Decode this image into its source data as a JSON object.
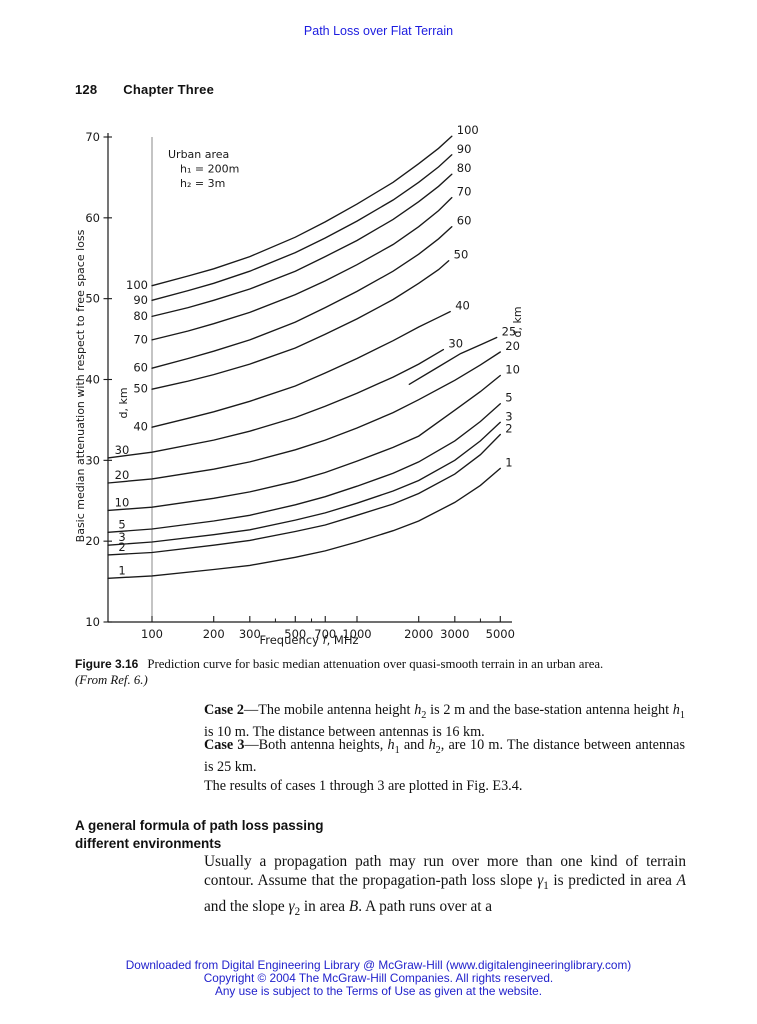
{
  "page": {
    "running_title": "Path Loss over Flat Terrain",
    "running_title_color": "#1c1ce0",
    "page_number": "128",
    "chapter": "Chapter Three"
  },
  "figure": {
    "caption_label": "Figure 3.16",
    "caption_text": "Prediction curve for basic median attenuation over quasi-smooth terrain in an urban area. ",
    "caption_source": "(From Ref. 6.)",
    "annotation": [
      "Urban area",
      "h₁ = 200m",
      "h₂ = 3m"
    ]
  },
  "chart_data": {
    "type": "line",
    "title": "",
    "xlabel": "Frequency f, MHz",
    "xlabel_parts": [
      "Frequency ",
      "f",
      ", MHz"
    ],
    "ylabel": "Basic median attenuation with respect to free space loss",
    "family_label": "d, km",
    "x_scale": "log",
    "xlim": [
      61,
      5200
    ],
    "ylim": [
      10,
      70
    ],
    "x_ticks": [
      100,
      200,
      300,
      500,
      700,
      1000,
      2000,
      3000,
      5000
    ],
    "x_minor_ticks": [
      400,
      600,
      4000
    ],
    "y_ticks": [
      70,
      60,
      50,
      40,
      30,
      20,
      10
    ],
    "reference_line_x": 100,
    "ink_color": "#1a1a1a",
    "series": [
      {
        "name": "100",
        "d_km": 100,
        "label_left": true,
        "points": [
          [
            100,
            51.6
          ],
          [
            150,
            52.8
          ],
          [
            200,
            53.7
          ],
          [
            300,
            55.2
          ],
          [
            500,
            57.6
          ],
          [
            700,
            59.5
          ],
          [
            1000,
            61.7
          ],
          [
            1500,
            64.4
          ],
          [
            2000,
            66.7
          ],
          [
            2500,
            68.6
          ],
          [
            2900,
            70.1
          ]
        ]
      },
      {
        "name": "90",
        "d_km": 90,
        "label_left": true,
        "points": [
          [
            100,
            49.8
          ],
          [
            150,
            51.0
          ],
          [
            200,
            51.9
          ],
          [
            300,
            53.4
          ],
          [
            500,
            55.7
          ],
          [
            700,
            57.5
          ],
          [
            1000,
            59.6
          ],
          [
            1500,
            62.2
          ],
          [
            2000,
            64.4
          ],
          [
            2500,
            66.3
          ],
          [
            2900,
            67.8
          ]
        ]
      },
      {
        "name": "80",
        "d_km": 80,
        "label_left": true,
        "points": [
          [
            100,
            47.8
          ],
          [
            150,
            48.9
          ],
          [
            200,
            49.8
          ],
          [
            300,
            51.2
          ],
          [
            500,
            53.4
          ],
          [
            700,
            55.2
          ],
          [
            1000,
            57.2
          ],
          [
            1500,
            59.8
          ],
          [
            2000,
            62.0
          ],
          [
            2500,
            63.9
          ],
          [
            2900,
            65.4
          ]
        ]
      },
      {
        "name": "70",
        "d_km": 70,
        "label_left": true,
        "points": [
          [
            100,
            44.9
          ],
          [
            150,
            46.0
          ],
          [
            200,
            46.9
          ],
          [
            300,
            48.3
          ],
          [
            500,
            50.5
          ],
          [
            700,
            52.2
          ],
          [
            1000,
            54.2
          ],
          [
            1500,
            56.7
          ],
          [
            2000,
            58.9
          ],
          [
            2500,
            60.9
          ],
          [
            2900,
            62.5
          ]
        ]
      },
      {
        "name": "60",
        "d_km": 60,
        "label_left": true,
        "points": [
          [
            100,
            41.4
          ],
          [
            150,
            42.6
          ],
          [
            200,
            43.5
          ],
          [
            300,
            44.9
          ],
          [
            500,
            47.1
          ],
          [
            700,
            48.9
          ],
          [
            1000,
            50.9
          ],
          [
            1500,
            53.4
          ],
          [
            2000,
            55.5
          ],
          [
            2500,
            57.4
          ],
          [
            2900,
            58.9
          ]
        ]
      },
      {
        "name": "50",
        "d_km": 50,
        "label_left": true,
        "points": [
          [
            100,
            38.8
          ],
          [
            150,
            39.8
          ],
          [
            200,
            40.6
          ],
          [
            300,
            41.9
          ],
          [
            500,
            43.9
          ],
          [
            700,
            45.6
          ],
          [
            1000,
            47.5
          ],
          [
            1500,
            49.9
          ],
          [
            2000,
            51.9
          ],
          [
            2500,
            53.6
          ],
          [
            2800,
            54.7
          ]
        ]
      },
      {
        "name": "40",
        "d_km": 40,
        "label_left": true,
        "points": [
          [
            100,
            34.1
          ],
          [
            150,
            35.2
          ],
          [
            200,
            36.0
          ],
          [
            300,
            37.3
          ],
          [
            500,
            39.2
          ],
          [
            700,
            40.8
          ],
          [
            1000,
            42.6
          ],
          [
            1500,
            44.8
          ],
          [
            2000,
            46.5
          ],
          [
            2500,
            47.7
          ],
          [
            2850,
            48.4
          ]
        ]
      },
      {
        "name": "30",
        "d_km": 30,
        "label_left": true,
        "points": [
          [
            61,
            30.3
          ],
          [
            100,
            31.0
          ],
          [
            200,
            32.5
          ],
          [
            300,
            33.6
          ],
          [
            500,
            35.3
          ],
          [
            700,
            36.7
          ],
          [
            1000,
            38.3
          ],
          [
            1500,
            40.3
          ],
          [
            2000,
            41.9
          ],
          [
            2640,
            43.7
          ]
        ]
      },
      {
        "name": "25",
        "d_km": 25,
        "label_left": false,
        "points": [
          [
            1800,
            39.4
          ],
          [
            2400,
            41.3
          ],
          [
            3200,
            43.2
          ],
          [
            4100,
            44.4
          ],
          [
            4800,
            45.2
          ]
        ]
      },
      {
        "name": "20",
        "d_km": 20,
        "label_left": true,
        "points": [
          [
            61,
            27.2
          ],
          [
            100,
            27.7
          ],
          [
            200,
            28.9
          ],
          [
            300,
            29.8
          ],
          [
            500,
            31.3
          ],
          [
            700,
            32.5
          ],
          [
            1000,
            34.0
          ],
          [
            1500,
            35.9
          ],
          [
            2000,
            37.5
          ],
          [
            3000,
            39.9
          ],
          [
            4000,
            41.8
          ],
          [
            5000,
            43.4
          ]
        ]
      },
      {
        "name": "10",
        "d_km": 10,
        "label_left": true,
        "points": [
          [
            61,
            23.8
          ],
          [
            100,
            24.2
          ],
          [
            200,
            25.3
          ],
          [
            300,
            26.1
          ],
          [
            500,
            27.4
          ],
          [
            700,
            28.5
          ],
          [
            1000,
            29.9
          ],
          [
            1500,
            31.6
          ],
          [
            2000,
            33.0
          ],
          [
            3000,
            36.2
          ],
          [
            4000,
            38.5
          ],
          [
            5000,
            40.5
          ]
        ]
      },
      {
        "name": "5",
        "d_km": 5,
        "label_left": true,
        "points": [
          [
            61,
            21.1
          ],
          [
            100,
            21.5
          ],
          [
            200,
            22.5
          ],
          [
            300,
            23.2
          ],
          [
            500,
            24.5
          ],
          [
            700,
            25.5
          ],
          [
            1000,
            26.8
          ],
          [
            1500,
            28.4
          ],
          [
            2000,
            29.8
          ],
          [
            3000,
            32.4
          ],
          [
            4000,
            34.8
          ],
          [
            5000,
            37.0
          ]
        ]
      },
      {
        "name": "3",
        "d_km": 3,
        "label_left": true,
        "points": [
          [
            61,
            19.5
          ],
          [
            100,
            19.9
          ],
          [
            200,
            20.8
          ],
          [
            300,
            21.4
          ],
          [
            500,
            22.6
          ],
          [
            700,
            23.5
          ],
          [
            1000,
            24.7
          ],
          [
            1500,
            26.2
          ],
          [
            2000,
            27.5
          ],
          [
            3000,
            30.0
          ],
          [
            4000,
            32.4
          ],
          [
            5000,
            34.7
          ]
        ]
      },
      {
        "name": "2",
        "d_km": 2,
        "label_left": true,
        "points": [
          [
            61,
            18.3
          ],
          [
            100,
            18.6
          ],
          [
            200,
            19.5
          ],
          [
            300,
            20.1
          ],
          [
            500,
            21.2
          ],
          [
            700,
            22.0
          ],
          [
            1000,
            23.2
          ],
          [
            1500,
            24.6
          ],
          [
            2000,
            25.9
          ],
          [
            3000,
            28.3
          ],
          [
            4000,
            30.7
          ],
          [
            5000,
            33.2
          ]
        ]
      },
      {
        "name": "1",
        "d_km": 1,
        "label_left": true,
        "points": [
          [
            61,
            15.4
          ],
          [
            100,
            15.7
          ],
          [
            200,
            16.5
          ],
          [
            300,
            17.0
          ],
          [
            500,
            18.0
          ],
          [
            700,
            18.8
          ],
          [
            1000,
            19.9
          ],
          [
            1500,
            21.3
          ],
          [
            2000,
            22.5
          ],
          [
            3000,
            24.8
          ],
          [
            4000,
            26.9
          ],
          [
            5000,
            29.0
          ]
        ]
      }
    ]
  },
  "body": {
    "case2": [
      {
        "t": "Case 2",
        "b": 1
      },
      {
        "t": "—The mobile antenna height "
      },
      {
        "t": "h",
        "i": 1
      },
      {
        "t": "2",
        "sub": 1
      },
      {
        "t": " is 2 m and the base-station antenna height "
      },
      {
        "t": "h",
        "i": 1
      },
      {
        "t": "1",
        "sub": 1
      },
      {
        "t": " is 10 m. The distance between antennas is 16 km."
      }
    ],
    "case3": [
      {
        "t": "Case 3",
        "b": 1
      },
      {
        "t": "—Both antenna heights, "
      },
      {
        "t": "h",
        "i": 1
      },
      {
        "t": "1",
        "sub": 1
      },
      {
        "t": " and "
      },
      {
        "t": "h",
        "i": 1
      },
      {
        "t": "2",
        "sub": 1
      },
      {
        "t": ", are 10 m. The distance between antennas is 25 km."
      }
    ],
    "results": [
      {
        "t": "The results of cases 1 through 3 are plotted in Fig. E3.4."
      }
    ],
    "heading_line1": "A general formula of path loss passing",
    "heading_line2": "different environments",
    "intro": [
      {
        "t": "Usually a propagation path may run over more than one kind of terrain contour. Assume that the propagation-path loss slope "
      },
      {
        "t": "γ",
        "i": 1
      },
      {
        "t": "1",
        "sub": 1
      },
      {
        "t": " is predicted in area "
      },
      {
        "t": "A",
        "i": 1
      },
      {
        "t": " and the slope "
      },
      {
        "t": "γ",
        "i": 1
      },
      {
        "t": "2",
        "sub": 1
      },
      {
        "t": " in area "
      },
      {
        "t": "B",
        "i": 1
      },
      {
        "t": ". A path runs over at a"
      }
    ]
  },
  "footer": {
    "color": "#2222cc",
    "lines": [
      "Downloaded from Digital Engineering Library @ McGraw-Hill (www.digitalengineeringlibrary.com)",
      "Copyright © 2004 The McGraw-Hill Companies. All rights reserved.",
      "Any use is subject to the Terms of Use as given at the website."
    ]
  }
}
